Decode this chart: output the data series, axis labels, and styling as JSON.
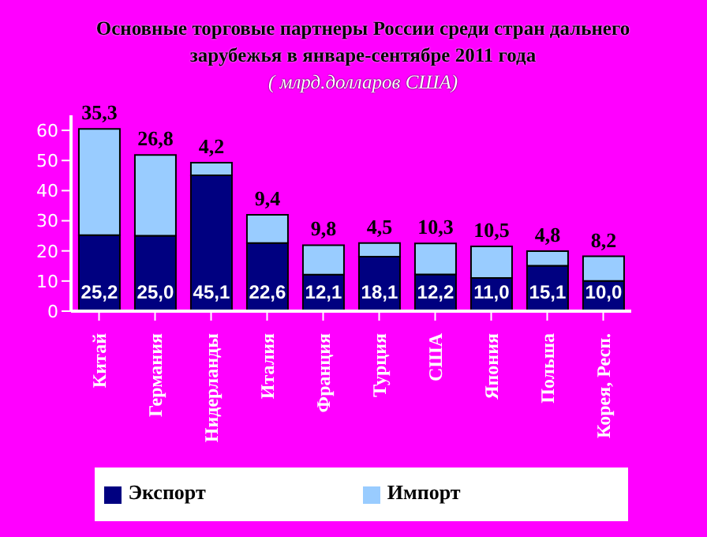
{
  "chart_data": {
    "type": "bar",
    "title": "Основные торговые партнеры России среди стран дальнего зарубежья в январе-сентябре 2011 года",
    "subtitle": "( млрд.долларов США)",
    "categories": [
      "Китай",
      "Германия",
      "Нидерланды",
      "Италия",
      "Франция",
      "Турция",
      "США",
      "Япония",
      "Польша",
      "Корея, Респ."
    ],
    "series": [
      {
        "name": "Экспорт",
        "color": "#000080",
        "values": [
          25.2,
          25.0,
          45.1,
          22.6,
          12.1,
          18.1,
          12.2,
          11.0,
          15.1,
          10.0
        ],
        "value_labels": [
          "25,2",
          "25,0",
          "45,1",
          "22,6",
          "12,1",
          "18,1",
          "12,2",
          "11,0",
          "15,1",
          "10,0"
        ]
      },
      {
        "name": "Импорт",
        "color": "#99ccff",
        "values": [
          35.3,
          26.8,
          4.2,
          9.4,
          9.8,
          4.5,
          10.3,
          10.5,
          4.8,
          8.2
        ],
        "value_labels": [
          "35,3",
          "26,8",
          "4,2",
          "9,4",
          "9,8",
          "4,5",
          "10,3",
          "10,5",
          "4,8",
          "8,2"
        ]
      }
    ],
    "stacked": true,
    "ylim": [
      0,
      65
    ],
    "yticks": [
      0,
      10,
      20,
      30,
      40,
      50,
      60
    ],
    "legend": "bottom"
  }
}
